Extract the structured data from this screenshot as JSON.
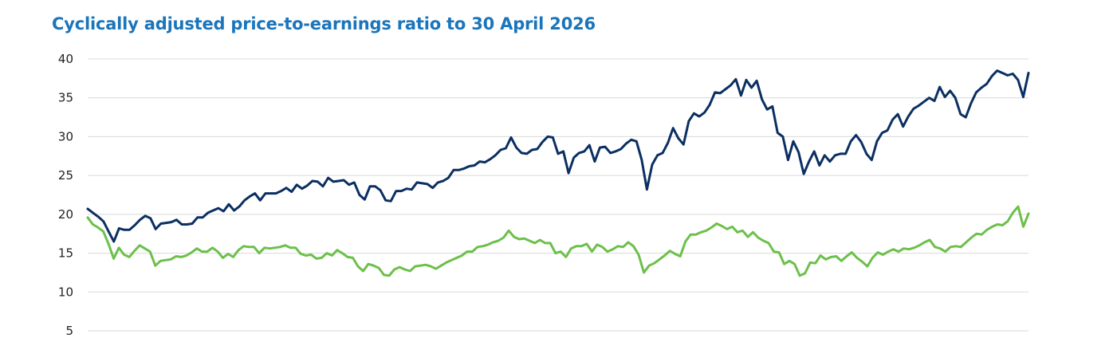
{
  "chart_data": {
    "type": "line",
    "title": "Cyclically adjusted price-to-earnings ratio to 30 April 2026",
    "xlabel": "",
    "ylabel": "",
    "ylim": [
      5,
      40
    ],
    "yticks": [
      "40",
      "35",
      "30",
      "25",
      "20",
      "15",
      "10",
      "5"
    ],
    "grid": true,
    "colors": {
      "title": "#1a75bb",
      "navy": "#0b2f62",
      "green": "#6cc04a",
      "grid": "#d9d9d9"
    },
    "series": [
      {
        "color": "#0b2f62",
        "values": [
          20.7,
          20.2,
          19.7,
          19.1,
          17.8,
          16.5,
          18.2,
          18.0,
          18.0,
          18.6,
          19.3,
          19.8,
          19.5,
          18.1,
          18.8,
          18.9,
          19.0,
          19.3,
          18.7,
          18.7,
          18.8,
          19.6,
          19.6,
          20.2,
          20.5,
          20.8,
          20.4,
          21.3,
          20.5,
          21.0,
          21.8,
          22.3,
          22.7,
          21.8,
          22.7,
          22.7,
          22.7,
          23.0,
          23.4,
          22.9,
          23.8,
          23.3,
          23.7,
          24.3,
          24.2,
          23.6,
          24.7,
          24.2,
          24.3,
          24.4,
          23.8,
          24.1,
          22.5,
          21.9,
          23.6,
          23.6,
          23.1,
          21.8,
          21.7,
          23.0,
          23.0,
          23.3,
          23.2,
          24.1,
          24.0,
          23.9,
          23.4,
          24.1,
          24.3,
          24.7,
          25.7,
          25.7,
          25.9,
          26.2,
          26.3,
          26.8,
          26.7,
          27.1,
          27.6,
          28.3,
          28.5,
          29.9,
          28.6,
          27.9,
          27.8,
          28.3,
          28.4,
          29.3,
          30.0,
          29.9,
          27.8,
          28.1,
          25.3,
          27.3,
          27.9,
          28.1,
          28.9,
          26.8,
          28.6,
          28.7,
          27.9,
          28.1,
          28.4,
          29.1,
          29.6,
          29.4,
          27.0,
          23.2,
          26.4,
          27.6,
          27.9,
          29.2,
          31.1,
          29.8,
          29.0,
          32.0,
          33.0,
          32.6,
          33.1,
          34.1,
          35.7,
          35.6,
          36.1,
          36.6,
          37.4,
          35.3,
          37.3,
          36.3,
          37.2,
          34.8,
          33.5,
          33.9,
          30.5,
          30.0,
          27.0,
          29.4,
          28.0,
          25.2,
          26.8,
          28.1,
          26.3,
          27.6,
          26.8,
          27.6,
          27.8,
          27.8,
          29.4,
          30.2,
          29.3,
          27.8,
          27.0,
          29.4,
          30.5,
          30.8,
          32.2,
          32.9,
          31.3,
          32.6,
          33.6,
          34.0,
          34.5,
          35.0,
          34.6,
          36.4,
          35.1,
          35.9,
          35.0,
          32.9,
          32.5,
          34.3,
          35.7,
          36.3,
          36.8,
          37.8,
          38.5,
          38.2,
          37.9,
          38.1,
          37.3,
          35.1,
          38.2
        ]
      },
      {
        "color": "#6cc04a",
        "values": [
          19.6,
          18.7,
          18.3,
          17.8,
          16.2,
          14.3,
          15.7,
          14.8,
          14.5,
          15.3,
          16.0,
          15.6,
          15.2,
          13.4,
          14.0,
          14.1,
          14.2,
          14.6,
          14.5,
          14.7,
          15.1,
          15.6,
          15.2,
          15.2,
          15.7,
          15.2,
          14.4,
          14.9,
          14.5,
          15.4,
          15.9,
          15.8,
          15.8,
          15.0,
          15.7,
          15.6,
          15.7,
          15.8,
          16.0,
          15.7,
          15.7,
          14.9,
          14.7,
          14.8,
          14.3,
          14.4,
          15.0,
          14.7,
          15.4,
          15.0,
          14.5,
          14.4,
          13.3,
          12.7,
          13.6,
          13.4,
          13.1,
          12.2,
          12.1,
          12.9,
          13.2,
          12.9,
          12.7,
          13.3,
          13.4,
          13.5,
          13.3,
          13.0,
          13.4,
          13.8,
          14.1,
          14.4,
          14.7,
          15.2,
          15.2,
          15.8,
          15.9,
          16.1,
          16.4,
          16.6,
          17.0,
          17.9,
          17.1,
          16.8,
          16.9,
          16.6,
          16.3,
          16.7,
          16.3,
          16.3,
          15.0,
          15.2,
          14.5,
          15.6,
          15.9,
          15.9,
          16.2,
          15.2,
          16.1,
          15.8,
          15.2,
          15.5,
          15.9,
          15.8,
          16.4,
          15.9,
          14.8,
          12.5,
          13.4,
          13.7,
          14.2,
          14.7,
          15.3,
          14.9,
          14.6,
          16.5,
          17.4,
          17.4,
          17.7,
          17.9,
          18.3,
          18.8,
          18.5,
          18.1,
          18.4,
          17.7,
          17.9,
          17.1,
          17.7,
          17.0,
          16.6,
          16.3,
          15.2,
          15.1,
          13.6,
          14.0,
          13.6,
          12.1,
          12.4,
          13.8,
          13.7,
          14.7,
          14.2,
          14.5,
          14.6,
          14.0,
          14.6,
          15.1,
          14.4,
          13.9,
          13.3,
          14.4,
          15.1,
          14.8,
          15.2,
          15.5,
          15.2,
          15.6,
          15.5,
          15.7,
          16.0,
          16.4,
          16.7,
          15.8,
          15.6,
          15.2,
          15.8,
          15.9,
          15.8,
          16.4,
          17.0,
          17.5,
          17.4,
          18.0,
          18.4,
          18.7,
          18.6,
          19.1,
          20.2,
          21.0,
          18.4,
          20.1
        ]
      }
    ]
  }
}
